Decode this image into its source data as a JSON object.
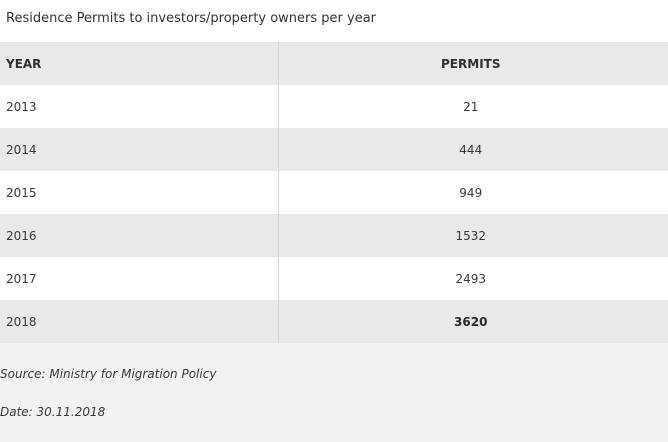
{
  "title": "Residence Permits to investors/property owners per year",
  "table": {
    "headers": {
      "year": "YEAR",
      "permits": "PERMITS"
    },
    "rows": [
      {
        "year": "2013",
        "permits": "21"
      },
      {
        "year": "2014",
        "permits": "444"
      },
      {
        "year": "2015",
        "permits": "949"
      },
      {
        "year": "2016",
        "permits": "1532"
      },
      {
        "year": "2017",
        "permits": "2493"
      },
      {
        "year": "2018",
        "permits": "3620"
      }
    ]
  },
  "notes": {
    "source": "Source: Ministry for Migration Policy",
    "date": "Date: 30.11.2018"
  }
}
